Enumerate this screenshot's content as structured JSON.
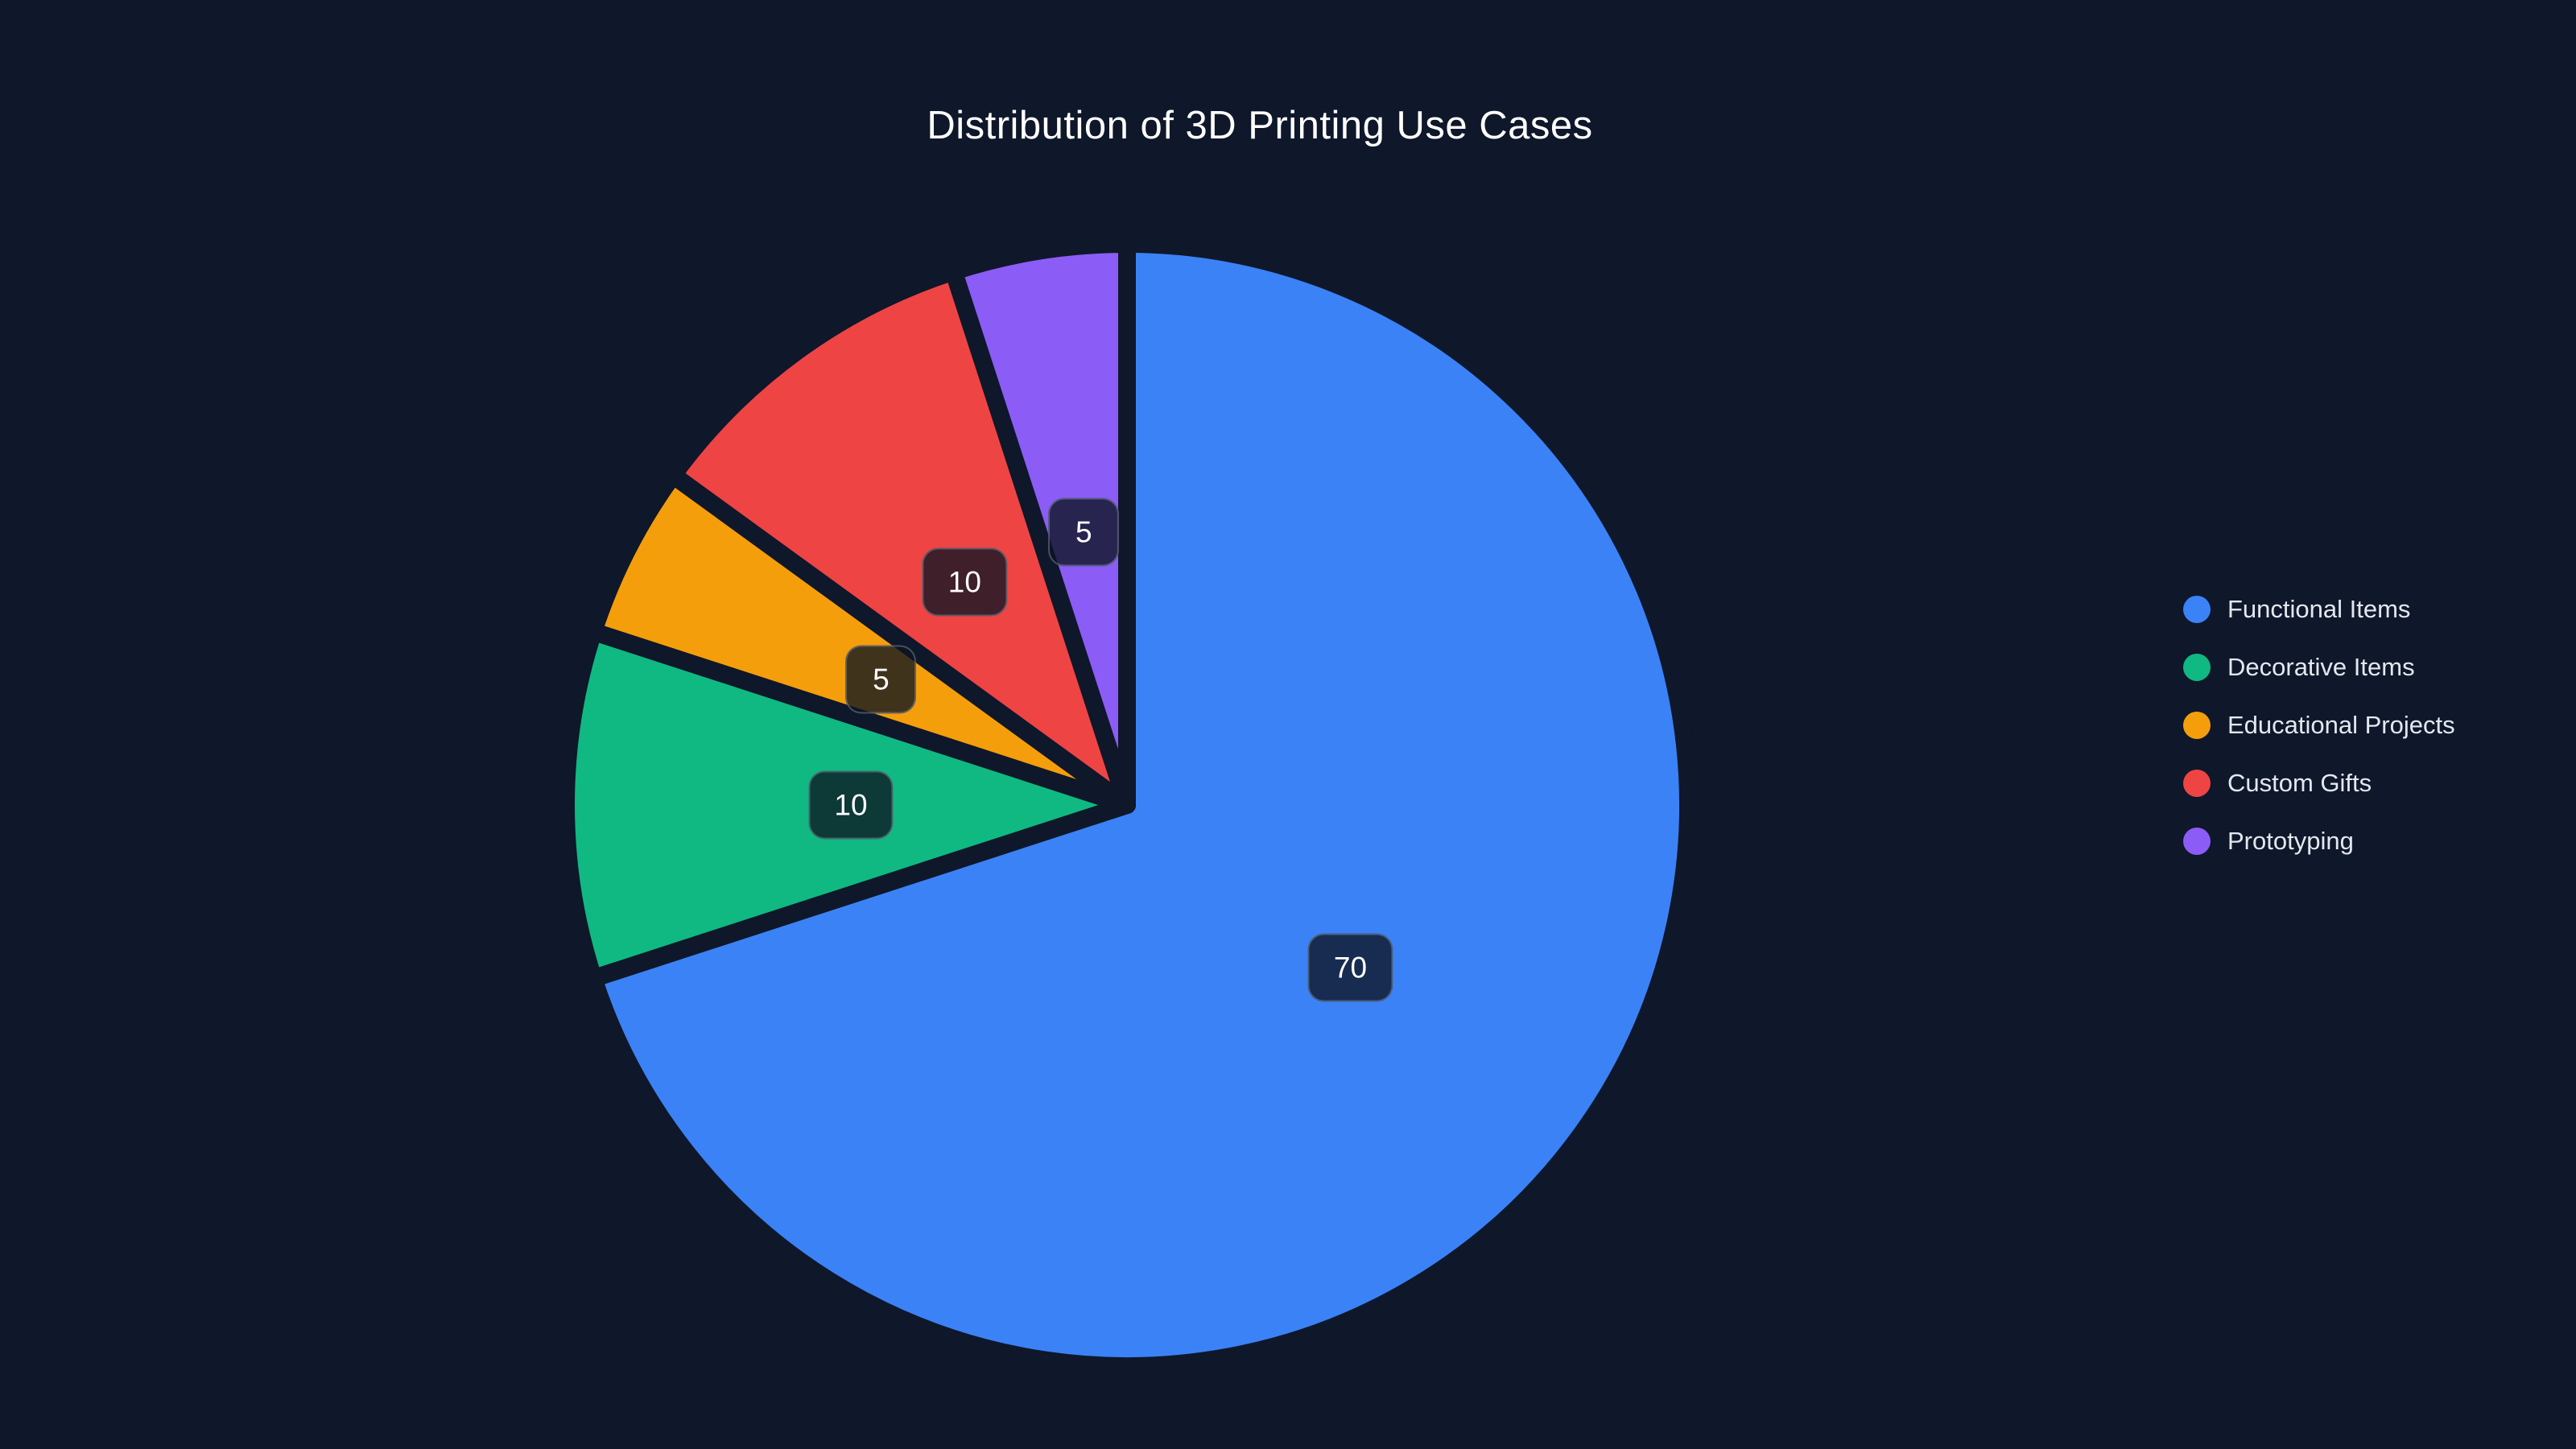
{
  "page": {
    "background_color": "#0f172a"
  },
  "chart_data": {
    "type": "pie",
    "title": "Distribution of 3D Printing Use Cases",
    "categories": [
      "Functional Items",
      "Decorative Items",
      "Educational Projects",
      "Custom Gifts",
      "Prototyping"
    ],
    "values": [
      70,
      10,
      5,
      10,
      5
    ],
    "colors": [
      "#3b82f6",
      "#10b981",
      "#f59e0b",
      "#ef4444",
      "#8b5cf6"
    ],
    "total": 100,
    "start_angle_deg": 0,
    "direction": "clockwise",
    "legend_position": "right-center",
    "label_style": "raw value in dark rounded badge at mid-radius of each slice",
    "slice_gap_color": "#0f172a"
  }
}
